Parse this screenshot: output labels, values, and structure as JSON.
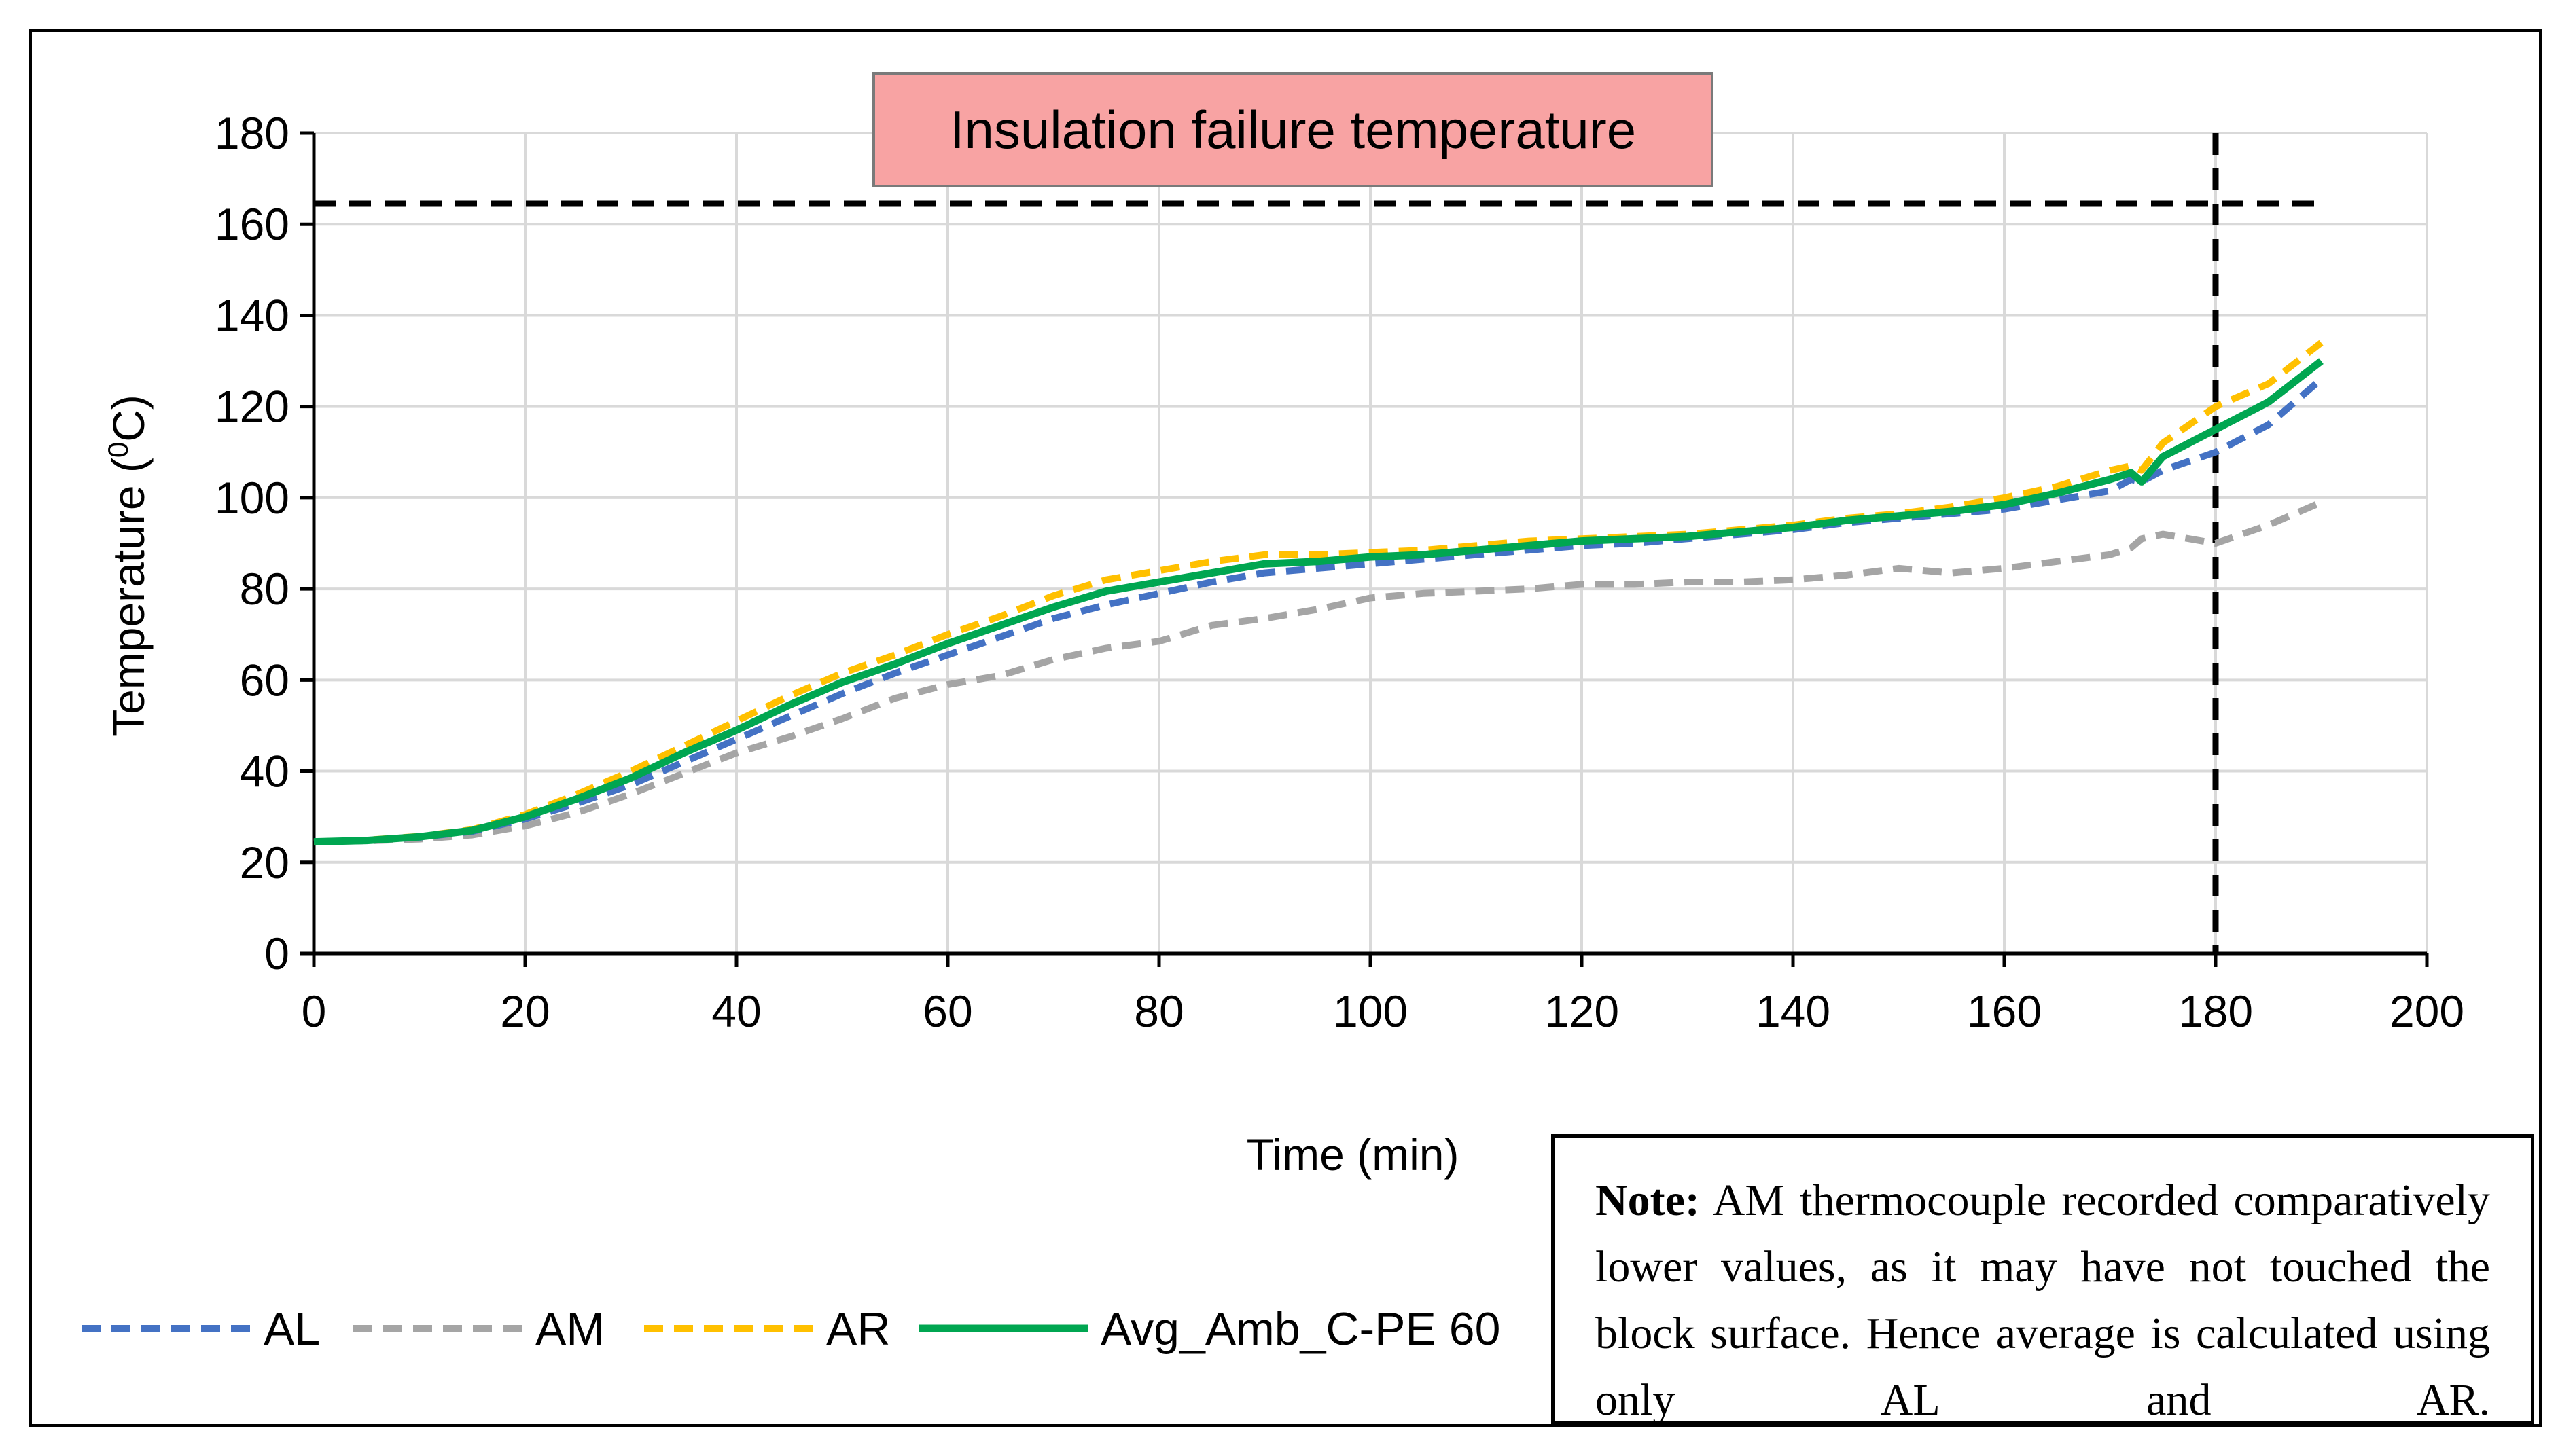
{
  "chart_data": {
    "type": "line",
    "title": "",
    "xlabel": "Time (min)",
    "ylabel": "Temperature (",
    "ylabel_super": "0",
    "ylabel_end": "C)",
    "xlim": [
      0,
      200
    ],
    "ylim": [
      0,
      180
    ],
    "xticks": [
      0,
      20,
      40,
      60,
      80,
      100,
      120,
      140,
      160,
      180,
      200
    ],
    "yticks": [
      0,
      20,
      40,
      60,
      80,
      100,
      120,
      140,
      160,
      180
    ],
    "grid": true,
    "legend_position": "bottom-left",
    "x": [
      0,
      5,
      10,
      15,
      20,
      25,
      30,
      35,
      40,
      45,
      50,
      55,
      60,
      65,
      70,
      75,
      80,
      85,
      90,
      95,
      100,
      105,
      110,
      115,
      120,
      125,
      130,
      135,
      140,
      145,
      150,
      155,
      160,
      165,
      170,
      172,
      173,
      175,
      180,
      185,
      190
    ],
    "series": [
      {
        "name": "AL",
        "color": "#4472c4",
        "style": "dashed",
        "values": [
          24.5,
          24.8,
          25.5,
          26.8,
          29.5,
          33,
          37,
          42,
          47,
          52,
          57,
          61.5,
          65.5,
          69.5,
          73.5,
          76.5,
          79,
          81.5,
          83.5,
          84.5,
          85.5,
          86.5,
          87.5,
          88.5,
          89.5,
          90,
          91,
          92,
          93,
          94.5,
          95.5,
          96.5,
          97.5,
          99.5,
          101.5,
          104,
          103.5,
          106,
          110,
          116,
          126
        ]
      },
      {
        "name": "AM",
        "color": "#a5a5a5",
        "style": "dashed",
        "values": [
          24.5,
          24.7,
          25.1,
          26,
          28,
          31,
          35,
          39.5,
          44,
          47.5,
          51.5,
          56,
          59,
          61,
          64.5,
          67,
          68.5,
          72,
          73.5,
          75.5,
          78,
          79,
          79.5,
          80,
          81,
          81,
          81.5,
          81.5,
          82,
          83,
          84.5,
          83.5,
          84.5,
          86,
          87.5,
          89,
          91,
          92,
          90,
          94,
          99
        ]
      },
      {
        "name": "AR",
        "color": "#ffc000",
        "style": "dashed",
        "values": [
          24.5,
          24.9,
          25.7,
          27.2,
          30.5,
          35,
          40,
          45.5,
          51,
          56.5,
          61.5,
          65.5,
          70,
          74,
          78.5,
          82,
          84,
          86,
          87.5,
          87.5,
          88,
          88.5,
          89.5,
          90.5,
          91,
          91.5,
          92,
          93,
          94,
          95.5,
          96.5,
          98,
          100,
          102.5,
          106,
          107,
          106,
          112,
          120,
          125,
          134
        ]
      },
      {
        "name": "Avg_Amb_C-PE 60",
        "color": "#00a651",
        "style": "solid",
        "values": [
          24.5,
          24.8,
          25.6,
          27,
          30,
          34,
          38.5,
          44,
          49,
          54.5,
          59.5,
          63.5,
          68,
          72,
          76,
          79.5,
          81.5,
          83.5,
          85.5,
          86,
          87,
          87.5,
          88.5,
          89.5,
          90.5,
          91,
          91.5,
          92.5,
          93.5,
          95,
          96,
          97,
          98.5,
          101,
          104,
          105.5,
          103.5,
          109,
          115,
          121,
          130
        ]
      }
    ],
    "reference_lines": [
      {
        "orientation": "horizontal",
        "value": 164.5,
        "color": "#000000",
        "style": "dashed",
        "x_range": [
          0,
          190
        ]
      },
      {
        "orientation": "vertical",
        "value": 180,
        "color": "#000000",
        "style": "dashed"
      }
    ],
    "annotation": "Insulation failure temperature"
  },
  "note": {
    "label": "Note:",
    "text": "AM thermocouple recorded comparatively lower values, as it may have not touched the block surface. Hence average is calculated using only AL and AR."
  }
}
